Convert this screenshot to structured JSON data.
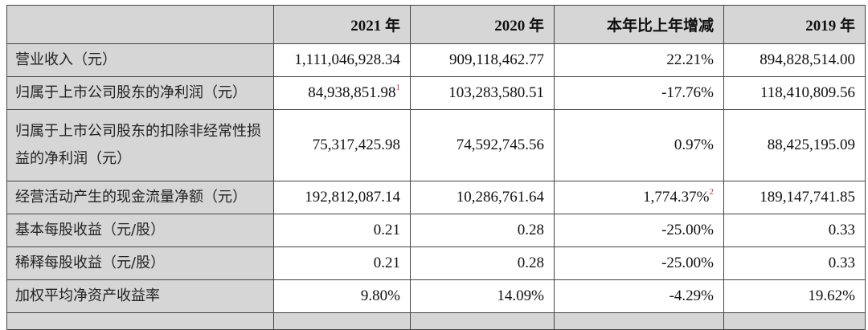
{
  "table": {
    "headers": [
      "",
      "2021 年",
      "2020 年",
      "本年比上年增减",
      "2019 年"
    ],
    "rows": [
      {
        "label": "营业收入（元）",
        "y2021": "1,111,046,928.34",
        "y2021_note": "",
        "y2020": "909,118,462.77",
        "change": "22.21%",
        "change_note": "",
        "y2019": "894,828,514.00"
      },
      {
        "label": "归属于上市公司股东的净利润（元）",
        "y2021": "84,938,851.98",
        "y2021_note": "1",
        "y2020": "103,283,580.51",
        "change": "-17.76%",
        "change_note": "",
        "y2019": "118,410,809.56"
      },
      {
        "label": "归属于上市公司股东的扣除非经常性损益的净利润（元）",
        "y2021": "75,317,425.98",
        "y2021_note": "",
        "y2020": "74,592,745.56",
        "change": "0.97%",
        "change_note": "",
        "y2019": "88,425,195.09"
      },
      {
        "label": "经营活动产生的现金流量净额（元）",
        "y2021": "192,812,087.14",
        "y2021_note": "",
        "y2020": "10,286,761.64",
        "change": "1,774.37%",
        "change_note": "2",
        "y2019": "189,147,741.85"
      },
      {
        "label": "基本每股收益（元/股）",
        "y2021": "0.21",
        "y2021_note": "",
        "y2020": "0.28",
        "change": "-25.00%",
        "change_note": "",
        "y2019": "0.33"
      },
      {
        "label": "稀释每股收益（元/股）",
        "y2021": "0.21",
        "y2021_note": "",
        "y2020": "0.28",
        "change": "-25.00%",
        "change_note": "",
        "y2019": "0.33"
      },
      {
        "label": "加权平均净资产收益率",
        "y2021": "9.80%",
        "y2021_note": "",
        "y2020": "14.09%",
        "change": "-4.29%",
        "change_note": "",
        "y2019": "19.62%"
      }
    ]
  },
  "colors": {
    "header_bg": "#d6d6d6",
    "footnote": "#c0392b"
  }
}
